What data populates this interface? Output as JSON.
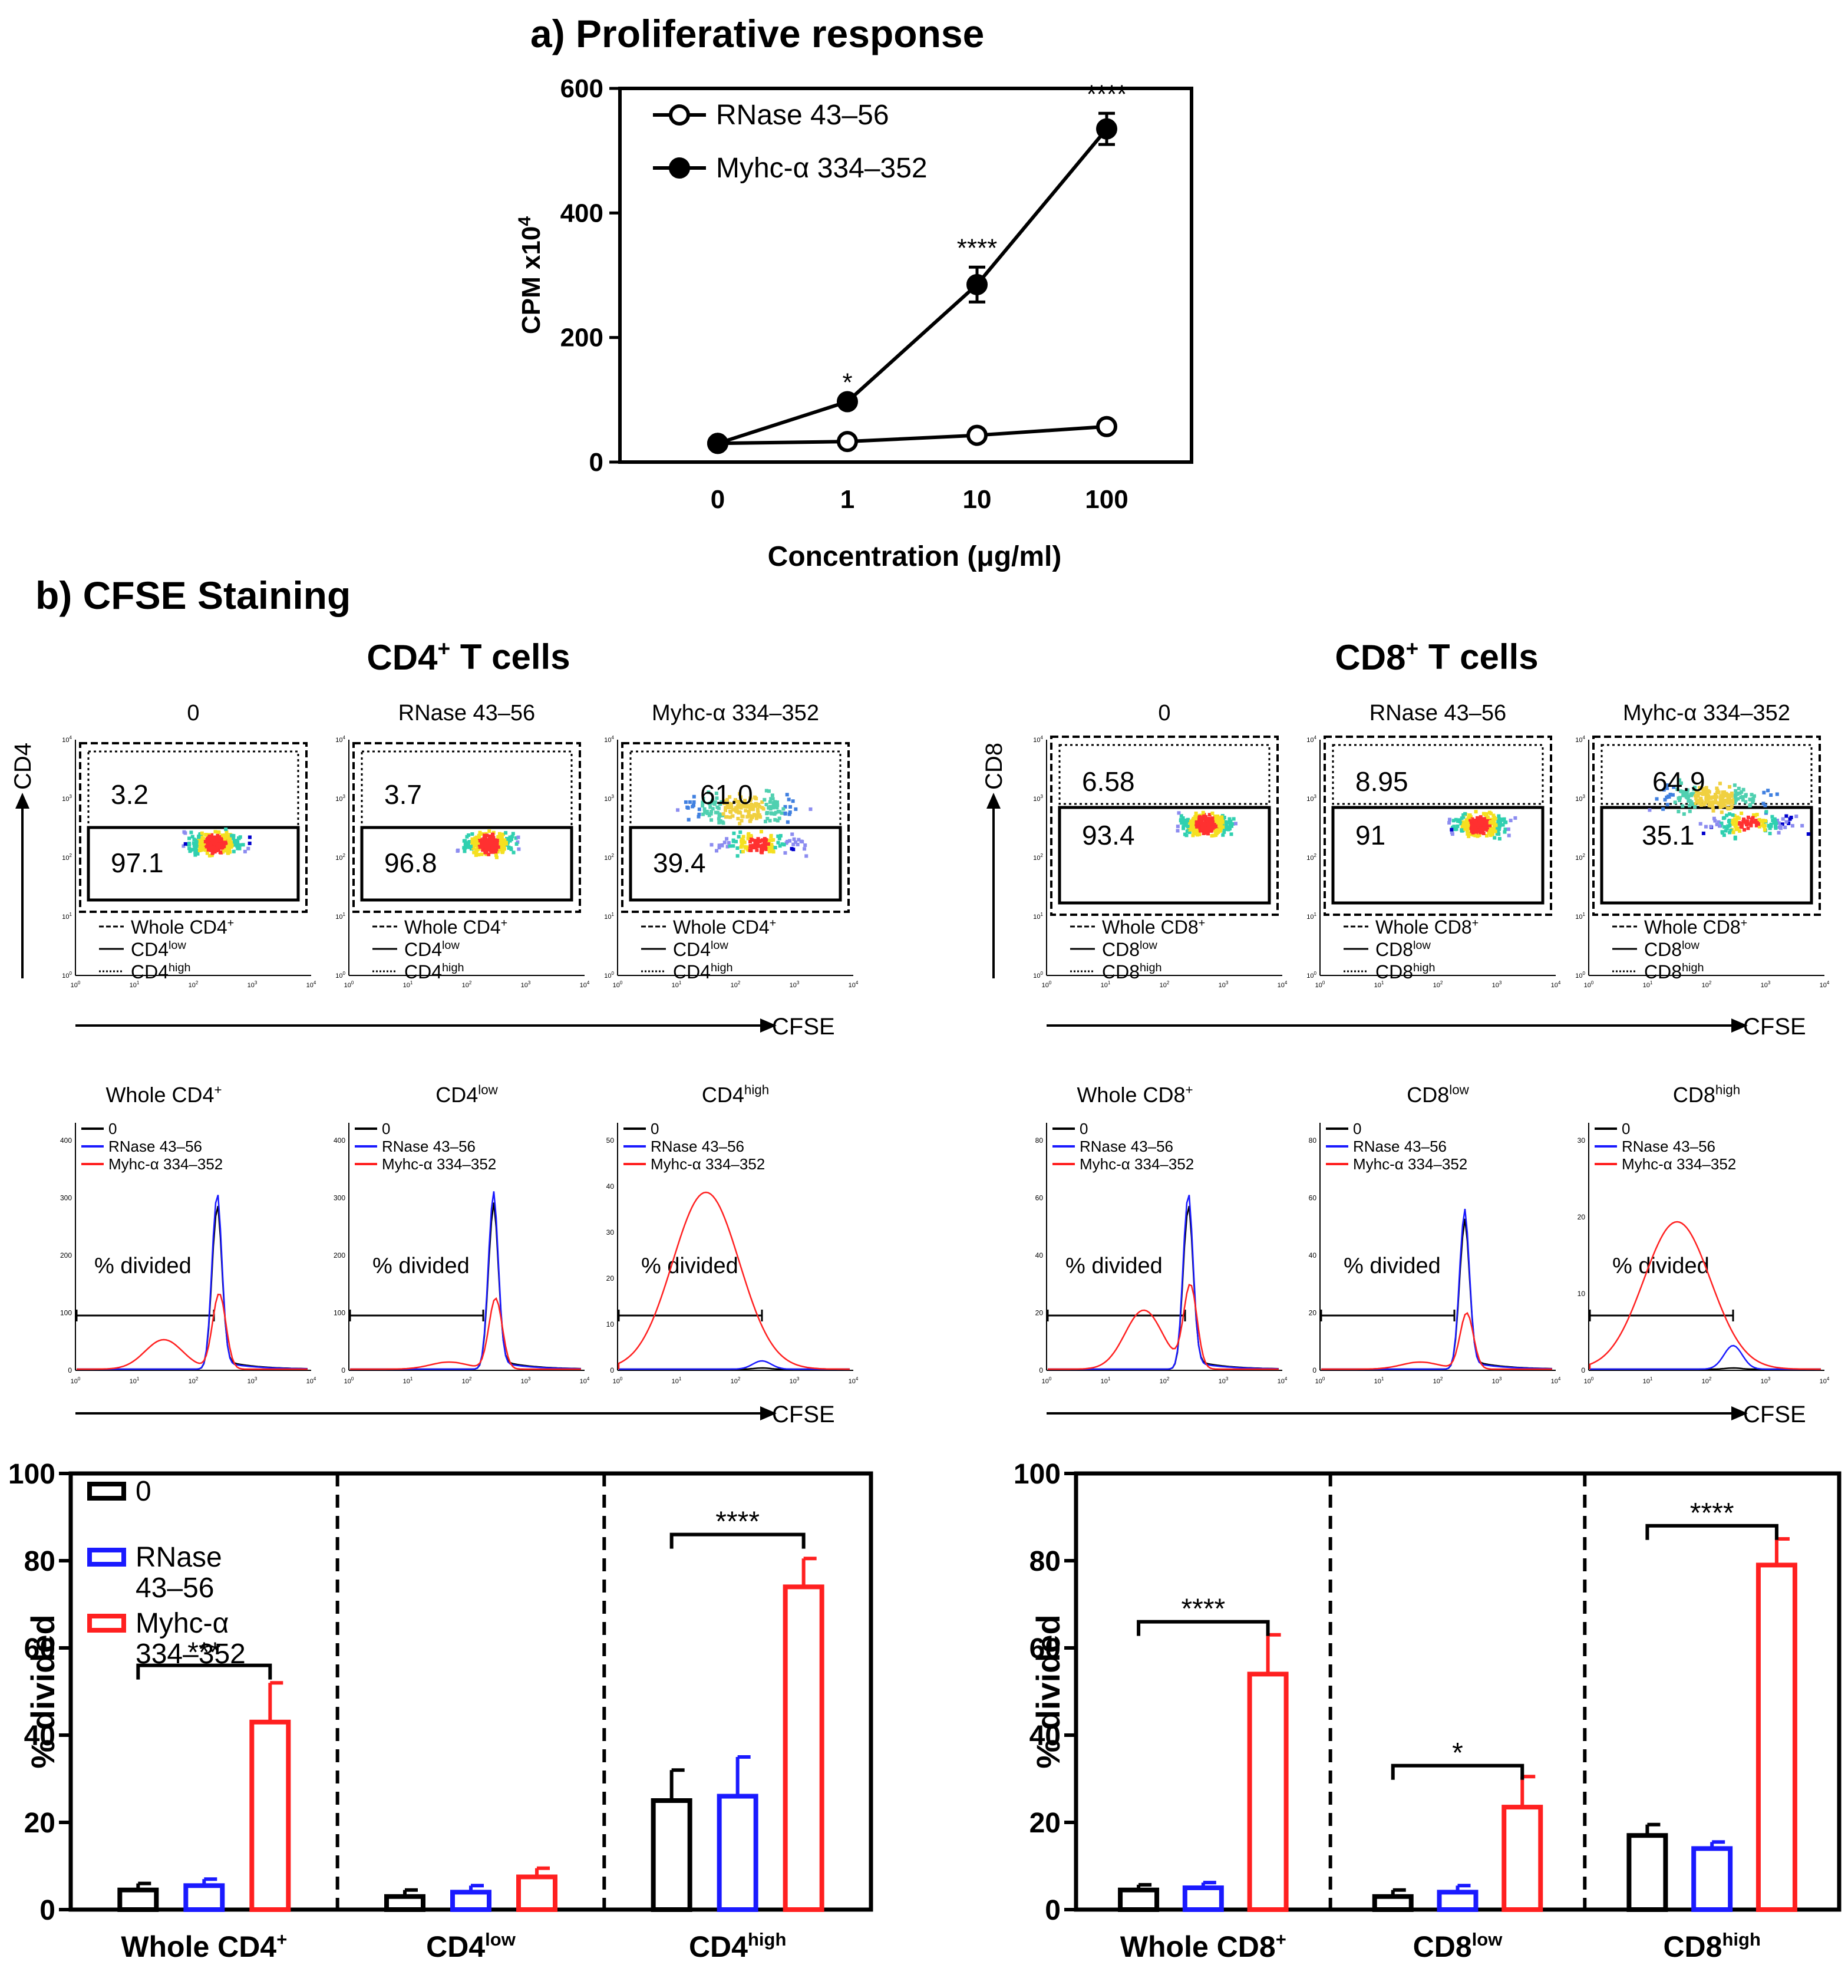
{
  "colors": {
    "black": "#000000",
    "blue": "#1a1aff",
    "red": "#ff2020",
    "dot_bg": "#8c8cf0"
  },
  "panel_a": {
    "heading": "a) Proliferative response",
    "chart_data": {
      "type": "line",
      "title": "Proliferative response",
      "xlabel_pre": "Concentration (",
      "xlabel_mu": "μ",
      "xlabel_post": "g/ml)",
      "ylabel": "CPM x10",
      "ylabel_exp": "4",
      "categories": [
        "0",
        "1",
        "10",
        "100"
      ],
      "y_ticks": [
        "0",
        "200",
        "400",
        "600"
      ],
      "ylim": [
        0,
        600
      ],
      "series": [
        {
          "name": "RNase 43–56",
          "marker": "open",
          "values": [
            30,
            33,
            43,
            57
          ],
          "errors": [
            0,
            0,
            0,
            0
          ],
          "stars": [
            "",
            "",
            "",
            ""
          ]
        },
        {
          "name": "Myhc-α 334–352",
          "marker": "filled",
          "values": [
            30,
            97,
            285,
            535
          ],
          "errors": [
            0,
            0,
            28,
            25
          ],
          "stars": [
            "",
            "*",
            "****",
            "****"
          ]
        }
      ]
    }
  },
  "panel_b": {
    "heading": "b) CFSE Staining",
    "groups": [
      {
        "title_pre": "CD4",
        "title_sup": "+",
        "title_post": " T cells",
        "ylabel": "CD4",
        "xlabel": "CFSE",
        "dotplots": [
          {
            "title": "0",
            "upper": "3.2",
            "lower": "97.1"
          },
          {
            "title": "RNase 43–56",
            "upper": "3.7",
            "lower": "96.8"
          },
          {
            "title": "Myhc-α 334–352",
            "upper": "61.0",
            "lower": "39.4"
          }
        ],
        "legend": [
          {
            "text": "Whole CD4",
            "sup": "+"
          },
          {
            "text": "CD4",
            "sup": "low"
          },
          {
            "text": "CD4",
            "sup": "high"
          }
        ],
        "hist_titles": [
          {
            "text": "Whole CD4",
            "sup": "+"
          },
          {
            "text": "CD4",
            "sup": "low"
          },
          {
            "text": "CD4",
            "sup": "high"
          }
        ],
        "hist_yticks": [
          [
            "0",
            "100",
            "200",
            "300",
            "400"
          ],
          [
            "0",
            "100",
            "200",
            "300",
            "400"
          ],
          [
            "0",
            "10",
            "20",
            "30",
            "40",
            "50"
          ]
        ],
        "hist_legend": [
          "0",
          "RNase 43–56",
          "Myhc-α 334–352"
        ],
        "hist_label": "% divided",
        "chart_data": {
          "type": "bar",
          "ylabel": "% divided",
          "ylim": [
            0,
            100
          ],
          "y_ticks": [
            "0",
            "20",
            "40",
            "60",
            "80",
            "100"
          ],
          "categories": [
            {
              "text": "Whole CD4",
              "sup": "+"
            },
            {
              "text": "CD4",
              "sup": "low"
            },
            {
              "text": "CD4",
              "sup": "high"
            }
          ],
          "series": [
            {
              "name": "0",
              "values": [
                4.5,
                3,
                25
              ],
              "errors": [
                1.5,
                1.5,
                7
              ]
            },
            {
              "name": "RNase 43–56",
              "values": [
                5.5,
                4,
                26
              ],
              "errors": [
                1.5,
                1.5,
                9
              ]
            },
            {
              "name": "Myhc-α 334–352",
              "values": [
                43,
                7.5,
                74
              ],
              "errors": [
                9,
                2,
                6.5
              ]
            }
          ],
          "significance": [
            {
              "label": "***",
              "from": 0,
              "to": 2,
              "level": 56
            },
            {
              "label": "",
              "from": 0,
              "to": 2,
              "level": 0
            },
            {
              "label": "****",
              "from": 0,
              "to": 2,
              "level": 86
            }
          ],
          "legend": [
            {
              "line1": "0",
              "line2": ""
            },
            {
              "line1": "RNase",
              "line2": "43–56"
            },
            {
              "line1": "Myhc-α",
              "line2": "334–352"
            }
          ]
        }
      },
      {
        "title_pre": "CD8",
        "title_sup": "+",
        "title_post": " T cells",
        "ylabel": "CD8",
        "xlabel": "CFSE",
        "dotplots": [
          {
            "title": "0",
            "upper": "6.58",
            "lower": "93.4"
          },
          {
            "title": "RNase 43–56",
            "upper": "8.95",
            "lower": "91"
          },
          {
            "title": "Myhc-α 334–352",
            "upper": "64.9",
            "lower": "35.1"
          }
        ],
        "legend": [
          {
            "text": "Whole CD8",
            "sup": "+"
          },
          {
            "text": "CD8",
            "sup": "low"
          },
          {
            "text": "CD8",
            "sup": "high"
          }
        ],
        "hist_titles": [
          {
            "text": "Whole CD8",
            "sup": "+"
          },
          {
            "text": "CD8",
            "sup": "low"
          },
          {
            "text": "CD8",
            "sup": "high"
          }
        ],
        "hist_yticks": [
          [
            "0",
            "20",
            "40",
            "60",
            "80"
          ],
          [
            "0",
            "20",
            "40",
            "60",
            "80"
          ],
          [
            "0",
            "10",
            "20",
            "30"
          ]
        ],
        "hist_legend": [
          "0",
          "RNase 43–56",
          "Myhc-α 334–352"
        ],
        "hist_label": "% divided",
        "chart_data": {
          "type": "bar",
          "ylabel": "% divided",
          "ylim": [
            0,
            100
          ],
          "y_ticks": [
            "0",
            "20",
            "40",
            "60",
            "80",
            "100"
          ],
          "categories": [
            {
              "text": "Whole CD8",
              "sup": "+"
            },
            {
              "text": "CD8",
              "sup": "low"
            },
            {
              "text": "CD8",
              "sup": "high"
            }
          ],
          "series": [
            {
              "name": "0",
              "values": [
                4.5,
                3,
                17
              ],
              "errors": [
                1.2,
                1.5,
                2.5
              ]
            },
            {
              "name": "RNase 43–56",
              "values": [
                5,
                4,
                14
              ],
              "errors": [
                1.2,
                1.5,
                1.5
              ]
            },
            {
              "name": "Myhc-α 334–352",
              "values": [
                54,
                23.5,
                79
              ],
              "errors": [
                9,
                7,
                6
              ]
            }
          ],
          "significance": [
            {
              "label": "****",
              "from": 0,
              "to": 2,
              "level": 66
            },
            {
              "label": "*",
              "from": 0,
              "to": 2,
              "level": 33
            },
            {
              "label": "****",
              "from": 0,
              "to": 2,
              "level": 88
            }
          ]
        }
      }
    ]
  },
  "axis": {
    "tick_exps": [
      "0",
      "1",
      "2",
      "3",
      "4"
    ],
    "tick_base": "10"
  }
}
